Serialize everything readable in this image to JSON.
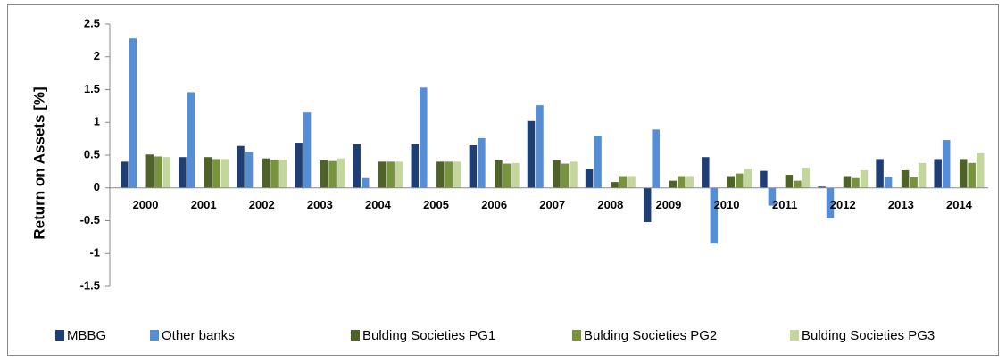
{
  "chart_data": {
    "type": "bar",
    "y_label": "Return on Assets [%]",
    "categories": [
      "2000",
      "2001",
      "2002",
      "2003",
      "2004",
      "2005",
      "2006",
      "2007",
      "2008",
      "2009",
      "2010",
      "2011",
      "2012",
      "2013",
      "2014"
    ],
    "series": [
      {
        "name": "MBBG",
        "color": "#1f3f74",
        "values": [
          0.4,
          0.47,
          0.64,
          0.69,
          0.67,
          0.67,
          0.65,
          1.02,
          0.29,
          -0.52,
          0.47,
          0.26,
          0.02,
          0.44,
          0.44
        ]
      },
      {
        "name": "Other banks",
        "color": "#558ed5",
        "values": [
          2.28,
          1.46,
          0.55,
          1.15,
          0.15,
          1.53,
          0.76,
          1.26,
          0.8,
          0.89,
          -0.85,
          -0.27,
          -0.46,
          0.17,
          0.73
        ]
      },
      {
        "name": "Bulding Societies PG1",
        "color": "#4f6228",
        "values": [
          0.51,
          0.47,
          0.45,
          0.42,
          0.4,
          0.4,
          0.42,
          0.42,
          0.09,
          0.11,
          0.18,
          0.2,
          0.18,
          0.27,
          0.44
        ]
      },
      {
        "name": "Bulding Societies PG2",
        "color": "#77933c",
        "values": [
          0.48,
          0.44,
          0.43,
          0.41,
          0.4,
          0.4,
          0.37,
          0.37,
          0.18,
          0.18,
          0.22,
          0.11,
          0.15,
          0.16,
          0.38
        ]
      },
      {
        "name": "Bulding Societies PG3",
        "color": "#c3d69b",
        "values": [
          0.47,
          0.44,
          0.43,
          0.45,
          0.4,
          0.4,
          0.38,
          0.4,
          0.18,
          0.18,
          0.29,
          0.31,
          0.27,
          0.38,
          0.53
        ]
      }
    ],
    "ylim": [
      -1.5,
      2.5
    ],
    "yticks": [
      -1.5,
      -1,
      -0.5,
      0,
      0.5,
      1,
      1.5,
      2,
      2.5
    ],
    "grid": false,
    "legend": "bottom"
  }
}
